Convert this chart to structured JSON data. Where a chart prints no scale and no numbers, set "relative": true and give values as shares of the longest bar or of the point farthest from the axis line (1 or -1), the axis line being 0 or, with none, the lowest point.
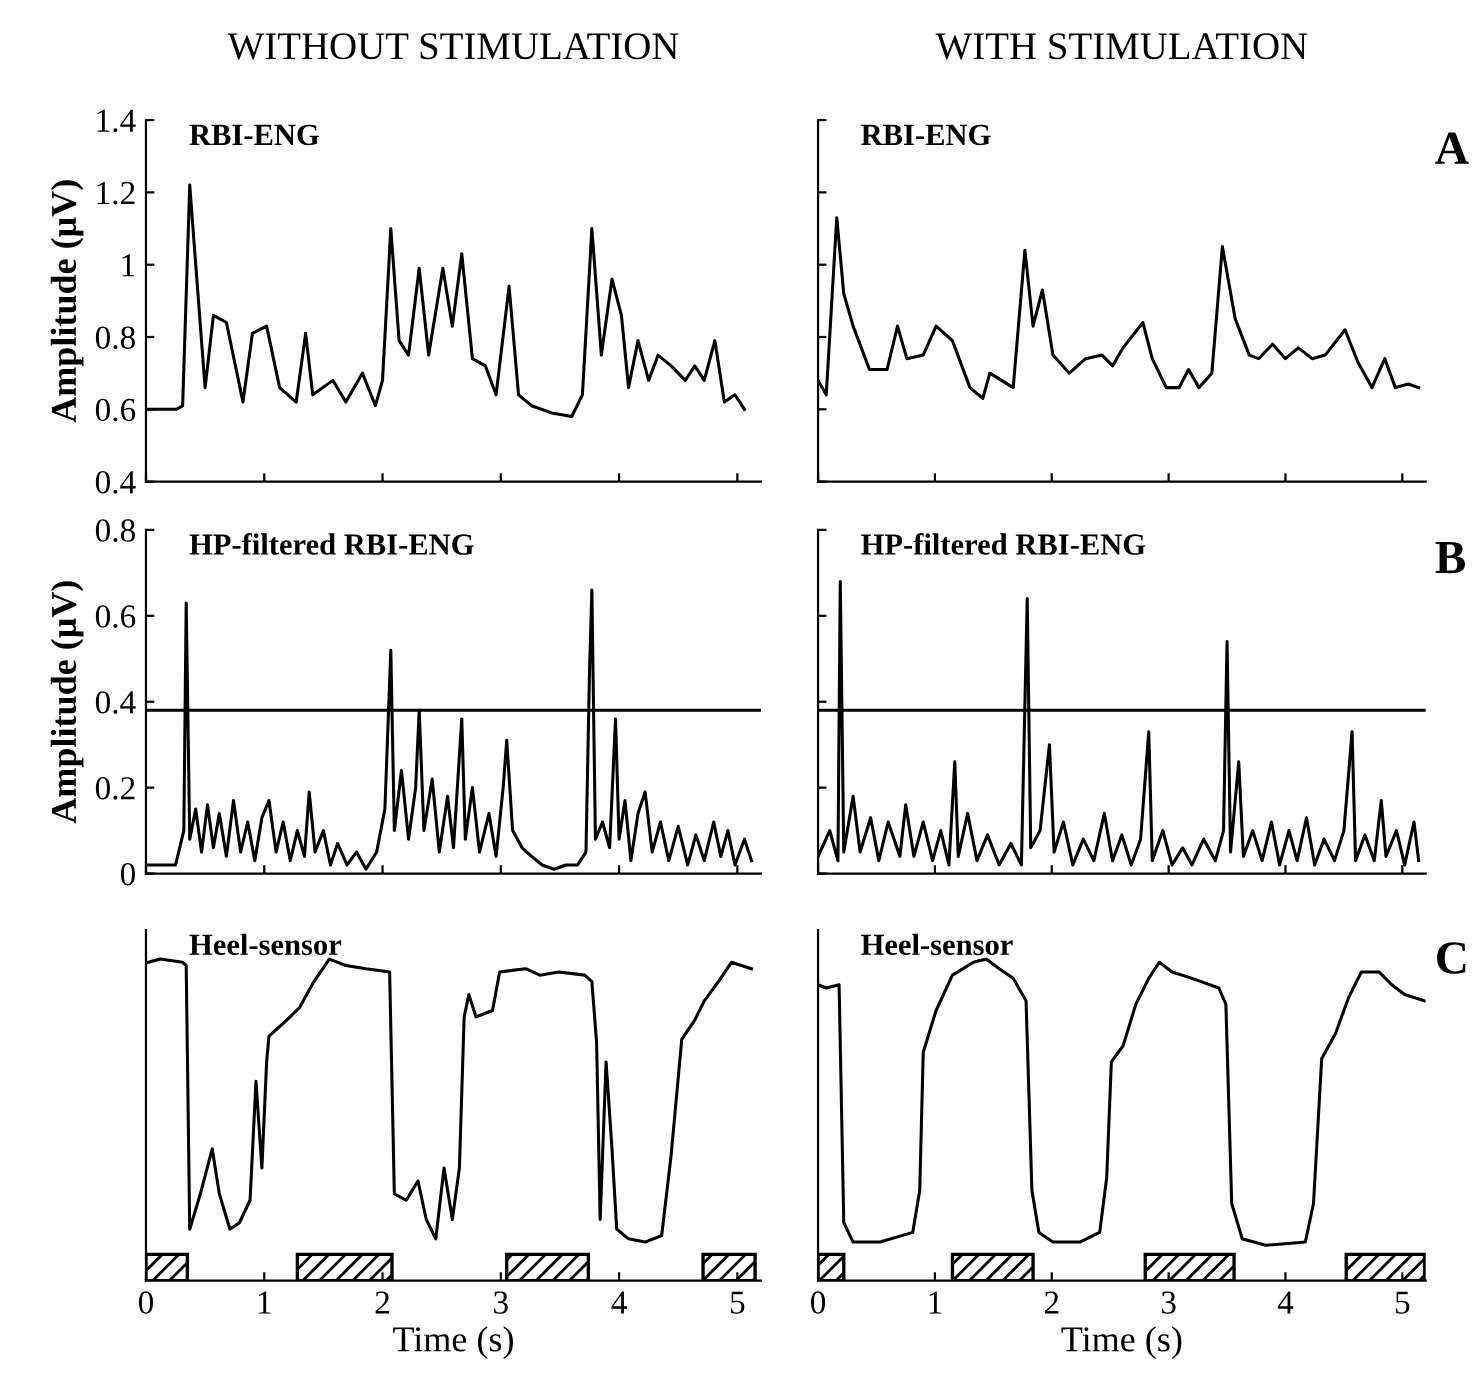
{
  "chart_data": [
    {
      "type": "line",
      "title": "WITHOUT STIMULATION",
      "subtitle": "RBI-ENG",
      "ylabel": "Amplitude (μV)",
      "xlim": [
        0,
        5.2
      ],
      "xticks": [
        0,
        1,
        2,
        3,
        4,
        5
      ],
      "ylim": [
        0.4,
        1.4
      ],
      "yticks": [
        0.4,
        0.6,
        0.8,
        1,
        1.2,
        1.4
      ],
      "tick_labels": "y",
      "series": [
        {
          "color": "#000000",
          "x": [
            0,
            0.26,
            0.31,
            0.37,
            0.46,
            0.5,
            0.57,
            0.68,
            0.82,
            0.9,
            1.02,
            1.13,
            1.27,
            1.35,
            1.41,
            1.58,
            1.69,
            1.83,
            1.94,
            2.0,
            2.07,
            2.14,
            2.22,
            2.31,
            2.39,
            2.51,
            2.59,
            2.67,
            2.76,
            2.87,
            2.96,
            3.07,
            3.15,
            3.26,
            3.43,
            3.6,
            3.69,
            3.77,
            3.85,
            3.94,
            4.02,
            4.08,
            4.16,
            4.25,
            4.33,
            4.44,
            4.56,
            4.64,
            4.72,
            4.81,
            4.89,
            4.98,
            5.06
          ],
          "values": [
            0.6,
            0.6,
            0.61,
            1.22,
            0.83,
            0.66,
            0.86,
            0.84,
            0.62,
            0.81,
            0.83,
            0.66,
            0.62,
            0.81,
            0.64,
            0.68,
            0.62,
            0.7,
            0.61,
            0.68,
            1.1,
            0.79,
            0.75,
            0.99,
            0.75,
            0.99,
            0.83,
            1.03,
            0.74,
            0.72,
            0.64,
            0.94,
            0.64,
            0.61,
            0.59,
            0.58,
            0.64,
            1.1,
            0.75,
            0.96,
            0.86,
            0.66,
            0.79,
            0.68,
            0.75,
            0.72,
            0.68,
            0.72,
            0.68,
            0.79,
            0.62,
            0.64,
            0.6
          ]
        }
      ]
    },
    {
      "type": "line",
      "title": "WITH STIMULATION",
      "subtitle": "RBI-ENG",
      "annotations": [
        "A"
      ],
      "xlim": [
        0,
        5.2
      ],
      "xticks": [
        0,
        1,
        2,
        3,
        4,
        5
      ],
      "ylim": [
        0.4,
        1.4
      ],
      "yticks": [
        0.4,
        0.6,
        0.8,
        1,
        1.2,
        1.4
      ],
      "tick_labels": false,
      "series": [
        {
          "color": "#000000",
          "x": [
            0,
            0.07,
            0.16,
            0.22,
            0.3,
            0.44,
            0.59,
            0.68,
            0.76,
            0.9,
            1.01,
            1.15,
            1.3,
            1.41,
            1.47,
            1.67,
            1.77,
            1.84,
            1.92,
            2.01,
            2.15,
            2.29,
            2.43,
            2.52,
            2.61,
            2.78,
            2.86,
            2.98,
            3.09,
            3.17,
            3.26,
            3.37,
            3.46,
            3.57,
            3.69,
            3.77,
            3.89,
            4.0,
            4.11,
            4.23,
            4.34,
            4.51,
            4.62,
            4.74,
            4.85,
            4.94,
            5.05,
            5.14
          ],
          "values": [
            0.68,
            0.64,
            1.13,
            0.92,
            0.83,
            0.71,
            0.71,
            0.83,
            0.74,
            0.75,
            0.83,
            0.79,
            0.66,
            0.63,
            0.7,
            0.66,
            1.04,
            0.83,
            0.93,
            0.75,
            0.7,
            0.74,
            0.75,
            0.72,
            0.77,
            0.84,
            0.74,
            0.66,
            0.66,
            0.71,
            0.66,
            0.7,
            1.05,
            0.85,
            0.75,
            0.74,
            0.78,
            0.74,
            0.77,
            0.74,
            0.75,
            0.82,
            0.73,
            0.66,
            0.74,
            0.66,
            0.67,
            0.66
          ]
        }
      ]
    },
    {
      "type": "line",
      "subtitle": "HP-filtered RBI-ENG",
      "ylabel": "Amplitude (μV)",
      "xlim": [
        0,
        5.2
      ],
      "xticks": [
        0,
        1,
        2,
        3,
        4,
        5
      ],
      "ylim": [
        0,
        0.8
      ],
      "yticks": [
        0,
        0.2,
        0.4,
        0.6,
        0.8
      ],
      "tick_labels": "y",
      "ref_lines": [
        {
          "axis": "y",
          "value": 0.38,
          "color": "#000000"
        }
      ],
      "series": [
        {
          "color": "#000000",
          "x": [
            0,
            0.25,
            0.32,
            0.34,
            0.37,
            0.42,
            0.47,
            0.52,
            0.57,
            0.62,
            0.68,
            0.74,
            0.8,
            0.86,
            0.92,
            0.98,
            1.04,
            1.1,
            1.16,
            1.22,
            1.28,
            1.34,
            1.38,
            1.43,
            1.5,
            1.56,
            1.62,
            1.7,
            1.78,
            1.86,
            1.95,
            2.02,
            2.07,
            2.1,
            2.16,
            2.22,
            2.28,
            2.31,
            2.35,
            2.42,
            2.48,
            2.55,
            2.6,
            2.67,
            2.7,
            2.76,
            2.82,
            2.9,
            2.96,
            3.02,
            3.05,
            3.1,
            3.18,
            3.26,
            3.35,
            3.45,
            3.55,
            3.65,
            3.72,
            3.75,
            3.77,
            3.8,
            3.86,
            3.92,
            3.97,
            4.0,
            4.05,
            4.1,
            4.16,
            4.22,
            4.28,
            4.35,
            4.42,
            4.5,
            4.58,
            4.65,
            4.72,
            4.8,
            4.86,
            4.92,
            4.98,
            5.06,
            5.12
          ],
          "values": [
            0.02,
            0.02,
            0.1,
            0.63,
            0.08,
            0.15,
            0.05,
            0.16,
            0.06,
            0.14,
            0.04,
            0.17,
            0.05,
            0.12,
            0.03,
            0.13,
            0.17,
            0.05,
            0.12,
            0.03,
            0.1,
            0.04,
            0.19,
            0.05,
            0.1,
            0.02,
            0.07,
            0.02,
            0.05,
            0.01,
            0.05,
            0.15,
            0.52,
            0.1,
            0.24,
            0.08,
            0.2,
            0.38,
            0.1,
            0.22,
            0.05,
            0.18,
            0.06,
            0.36,
            0.08,
            0.2,
            0.05,
            0.14,
            0.04,
            0.2,
            0.31,
            0.1,
            0.06,
            0.04,
            0.02,
            0.01,
            0.02,
            0.02,
            0.05,
            0.47,
            0.66,
            0.08,
            0.12,
            0.06,
            0.36,
            0.08,
            0.17,
            0.03,
            0.14,
            0.19,
            0.05,
            0.12,
            0.03,
            0.11,
            0.02,
            0.09,
            0.03,
            0.12,
            0.04,
            0.1,
            0.02,
            0.08,
            0.03
          ]
        }
      ]
    },
    {
      "type": "line",
      "subtitle": "HP-filtered RBI-ENG",
      "annotations": [
        "B"
      ],
      "xlim": [
        0,
        5.2
      ],
      "xticks": [
        0,
        1,
        2,
        3,
        4,
        5
      ],
      "ylim": [
        0,
        0.8
      ],
      "yticks": [
        0,
        0.2,
        0.4,
        0.6,
        0.8
      ],
      "tick_labels": false,
      "ref_lines": [
        {
          "axis": "y",
          "value": 0.38,
          "color": "#000000"
        }
      ],
      "series": [
        {
          "color": "#000000",
          "x": [
            0,
            0.1,
            0.17,
            0.19,
            0.22,
            0.3,
            0.36,
            0.45,
            0.52,
            0.6,
            0.7,
            0.75,
            0.82,
            0.9,
            0.98,
            1.05,
            1.12,
            1.17,
            1.2,
            1.28,
            1.36,
            1.45,
            1.55,
            1.65,
            1.74,
            1.79,
            1.82,
            1.9,
            1.98,
            2.02,
            2.1,
            2.18,
            2.27,
            2.36,
            2.45,
            2.52,
            2.6,
            2.68,
            2.76,
            2.83,
            2.86,
            2.95,
            3.03,
            3.12,
            3.2,
            3.3,
            3.4,
            3.47,
            3.5,
            3.53,
            3.6,
            3.64,
            3.72,
            3.8,
            3.88,
            3.95,
            4.03,
            4.1,
            4.18,
            4.25,
            4.33,
            4.42,
            4.5,
            4.57,
            4.6,
            4.68,
            4.76,
            4.82,
            4.86,
            4.95,
            5.02,
            5.1,
            5.14
          ],
          "values": [
            0.04,
            0.1,
            0.03,
            0.68,
            0.05,
            0.18,
            0.05,
            0.13,
            0.03,
            0.12,
            0.04,
            0.16,
            0.04,
            0.12,
            0.03,
            0.1,
            0.02,
            0.26,
            0.04,
            0.14,
            0.03,
            0.09,
            0.02,
            0.07,
            0.02,
            0.64,
            0.06,
            0.1,
            0.3,
            0.05,
            0.12,
            0.02,
            0.08,
            0.03,
            0.14,
            0.03,
            0.09,
            0.02,
            0.08,
            0.33,
            0.03,
            0.1,
            0.02,
            0.06,
            0.02,
            0.08,
            0.03,
            0.1,
            0.54,
            0.05,
            0.26,
            0.04,
            0.1,
            0.03,
            0.12,
            0.02,
            0.1,
            0.03,
            0.13,
            0.02,
            0.08,
            0.03,
            0.1,
            0.33,
            0.03,
            0.09,
            0.03,
            0.17,
            0.04,
            0.1,
            0.02,
            0.12,
            0.03
          ]
        }
      ]
    },
    {
      "type": "line",
      "subtitle": "Heel-sensor",
      "xlabel": "Time (s)",
      "relative": true,
      "xlim": [
        0,
        5.2
      ],
      "xticks": [
        0,
        1,
        2,
        3,
        4,
        5
      ],
      "tick_labels": "x",
      "bands": [
        {
          "axis": "x",
          "from": 0,
          "to": 0.35,
          "color": "#000000"
        },
        {
          "axis": "x",
          "from": 1.28,
          "to": 2.08,
          "color": "#000000"
        },
        {
          "axis": "x",
          "from": 3.05,
          "to": 3.74,
          "color": "#000000"
        },
        {
          "axis": "x",
          "from": 4.71,
          "to": 5.15,
          "color": "#000000"
        }
      ],
      "series": [
        {
          "color": "#000000",
          "x": [
            0.02,
            0.12,
            0.31,
            0.34,
            0.37,
            0.46,
            0.56,
            0.62,
            0.71,
            0.79,
            0.88,
            0.93,
            0.98,
            1.02,
            1.04,
            1.19,
            1.3,
            1.42,
            1.55,
            1.69,
            1.86,
            2.06,
            2.1,
            2.2,
            2.3,
            2.37,
            2.45,
            2.52,
            2.59,
            2.65,
            2.69,
            2.73,
            2.79,
            2.93,
            2.99,
            3.21,
            3.33,
            3.49,
            3.71,
            3.77,
            3.81,
            3.84,
            3.89,
            3.94,
            3.98,
            4.08,
            4.22,
            4.36,
            4.44,
            4.53,
            4.64,
            4.72,
            4.84,
            4.95,
            5.12
          ],
          "values": [
            0.99,
            1.0,
            0.99,
            0.98,
            0.16,
            0.27,
            0.41,
            0.27,
            0.16,
            0.18,
            0.25,
            0.62,
            0.35,
            0.68,
            0.76,
            0.81,
            0.85,
            0.93,
            1.0,
            0.98,
            0.97,
            0.96,
            0.27,
            0.25,
            0.31,
            0.19,
            0.13,
            0.35,
            0.19,
            0.35,
            0.82,
            0.89,
            0.82,
            0.84,
            0.96,
            0.97,
            0.95,
            0.96,
            0.95,
            0.93,
            0.74,
            0.19,
            0.68,
            0.41,
            0.16,
            0.13,
            0.12,
            0.14,
            0.39,
            0.75,
            0.81,
            0.87,
            0.93,
            0.99,
            0.97
          ]
        }
      ]
    },
    {
      "type": "line",
      "subtitle": "Heel-sensor",
      "xlabel": "Time (s)",
      "annotations": [
        "C"
      ],
      "relative": true,
      "xlim": [
        0,
        5.2
      ],
      "xticks": [
        0,
        1,
        2,
        3,
        4,
        5
      ],
      "tick_labels": "x",
      "bands": [
        {
          "axis": "x",
          "from": 0,
          "to": 0.22,
          "color": "#000000"
        },
        {
          "axis": "x",
          "from": 1.15,
          "to": 1.84,
          "color": "#000000"
        },
        {
          "axis": "x",
          "from": 2.8,
          "to": 3.56,
          "color": "#000000"
        },
        {
          "axis": "x",
          "from": 4.52,
          "to": 5.19,
          "color": "#000000"
        }
      ],
      "series": [
        {
          "color": "#000000",
          "x": [
            0,
            0.07,
            0.18,
            0.22,
            0.3,
            0.53,
            0.81,
            0.87,
            0.9,
            1.01,
            1.15,
            1.33,
            1.44,
            1.55,
            1.67,
            1.78,
            1.83,
            1.89,
            2.01,
            2.24,
            2.41,
            2.47,
            2.51,
            2.61,
            2.72,
            2.83,
            2.92,
            3.03,
            3.2,
            3.43,
            3.49,
            3.54,
            3.63,
            3.83,
            4.17,
            4.24,
            4.31,
            4.43,
            4.54,
            4.65,
            4.8,
            4.91,
            5.02,
            5.19
          ],
          "values": [
            0.92,
            0.91,
            0.92,
            0.18,
            0.12,
            0.12,
            0.15,
            0.28,
            0.71,
            0.84,
            0.95,
            0.99,
            1.0,
            0.97,
            0.94,
            0.87,
            0.28,
            0.15,
            0.12,
            0.12,
            0.15,
            0.32,
            0.68,
            0.73,
            0.86,
            0.94,
            0.99,
            0.96,
            0.94,
            0.91,
            0.86,
            0.24,
            0.13,
            0.11,
            0.12,
            0.24,
            0.69,
            0.77,
            0.88,
            0.96,
            0.96,
            0.92,
            0.89,
            0.87
          ]
        }
      ]
    }
  ]
}
